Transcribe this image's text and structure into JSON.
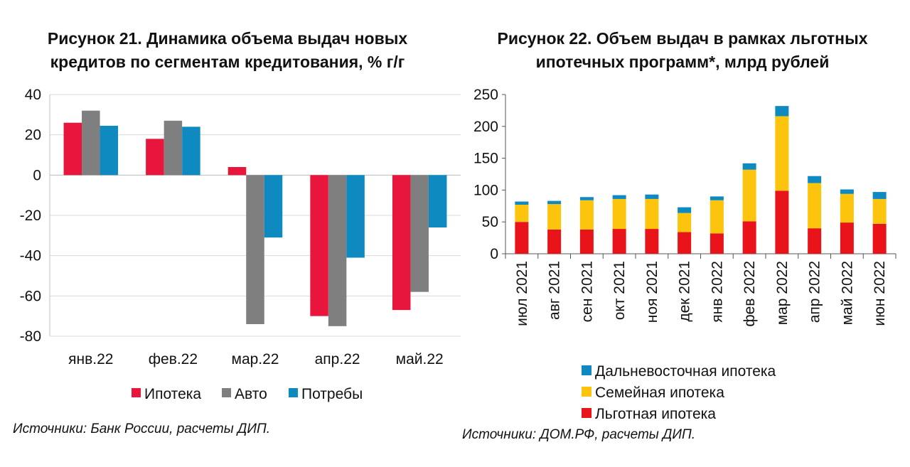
{
  "chart_data": [
    {
      "type": "bar",
      "title_lines": [
        "Рисунок 21. Динамика объема выдач новых",
        "кредитов по сегментам кредитования, % г/г"
      ],
      "categories": [
        "янв.22",
        "фев.22",
        "мар.22",
        "апр.22",
        "май.22"
      ],
      "series": [
        {
          "name": "Ипотека",
          "color": "#e8163c",
          "values": [
            26,
            18,
            4,
            -70,
            -67
          ]
        },
        {
          "name": "Авто",
          "color": "#7f7f7f",
          "values": [
            32,
            27,
            -74,
            -75,
            -58
          ]
        },
        {
          "name": "Потребы",
          "color": "#0f8ac0",
          "values": [
            24.5,
            24,
            -31,
            -41,
            -26
          ]
        }
      ],
      "ylim": [
        -80,
        40
      ],
      "yticks": [
        "40",
        "20",
        "0",
        "-20",
        "-40",
        "-60",
        "-80"
      ],
      "grid": true,
      "legend": "bottom",
      "source": "Источники: Банк России, расчеты ДИП."
    },
    {
      "type": "bar",
      "stacked": true,
      "title_lines": [
        "Рисунок 22. Объем выдач в рамках льготных",
        "ипотечных программ*, млрд рублей"
      ],
      "categories": [
        "июл 2021",
        "авг 2021",
        "сен 2021",
        "окт 2021",
        "ноя 2021",
        "дек 2021",
        "янв 2022",
        "фев 2022",
        "мар 2022",
        "апр 2022",
        "май 2022",
        "июн 2022"
      ],
      "series": [
        {
          "name": "Льготная ипотека",
          "color": "#e8141a",
          "values": [
            50,
            38,
            38,
            39,
            39,
            34,
            32,
            51,
            99,
            40,
            49,
            47
          ]
        },
        {
          "name": "Семейная ипотека",
          "color": "#fcc40c",
          "values": [
            27,
            40,
            46,
            47,
            47,
            30,
            52,
            81,
            117,
            71,
            45,
            39
          ]
        },
        {
          "name": "Дальневосточная ипотека",
          "color": "#0f8ac0",
          "values": [
            5,
            5,
            5,
            6,
            7,
            9,
            6,
            10,
            16,
            11,
            7,
            11
          ]
        }
      ],
      "ylim": [
        0,
        250
      ],
      "yticks": [
        "250",
        "200",
        "150",
        "100",
        "50",
        "0"
      ],
      "grid": false,
      "legend": "bottom",
      "source": "Источники: ДОМ.РФ, расчеты ДИП."
    }
  ]
}
